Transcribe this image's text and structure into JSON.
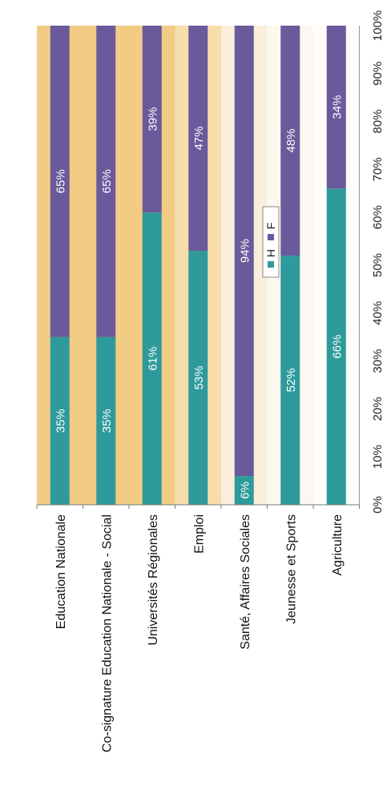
{
  "chart_data": {
    "type": "bar",
    "stacked": true,
    "orientation": "rotated-90-horizontal-bars",
    "categories": [
      "Education Nationale",
      "Co-signature Education Nationale - Social",
      "Universités Régionales",
      "Emploi",
      "Santé, Affaires Sociales",
      "Jeunesse et Sports",
      "Agriculture"
    ],
    "series": [
      {
        "name": "H",
        "color": "#2e9a9b",
        "values": [
          35,
          35,
          61,
          53,
          6,
          52,
          66
        ]
      },
      {
        "name": "F",
        "color": "#6a5a9c",
        "values": [
          65,
          65,
          39,
          47,
          94,
          48,
          34
        ]
      }
    ],
    "data_labels": {
      "H": [
        "35%",
        "35%",
        "61%",
        "53%",
        "6%",
        "52%",
        "66%"
      ],
      "F": [
        "65%",
        "65%",
        "39%",
        "47%",
        "94%",
        "48%",
        "34%"
      ]
    },
    "value_ticks": [
      "0%",
      "10%",
      "20%",
      "30%",
      "40%",
      "50%",
      "60%",
      "70%",
      "80%",
      "90%",
      "100%"
    ],
    "xlim": [
      0,
      100
    ],
    "legend": {
      "position": "top",
      "entries": [
        "H",
        "F"
      ]
    },
    "background_bands": [
      "#f2cc85",
      "#f2cc85",
      "#f2cc85",
      "#f7ddaa",
      "#fbeedd",
      "#fdf8ef",
      "#fefdfa"
    ],
    "grid": false
  }
}
